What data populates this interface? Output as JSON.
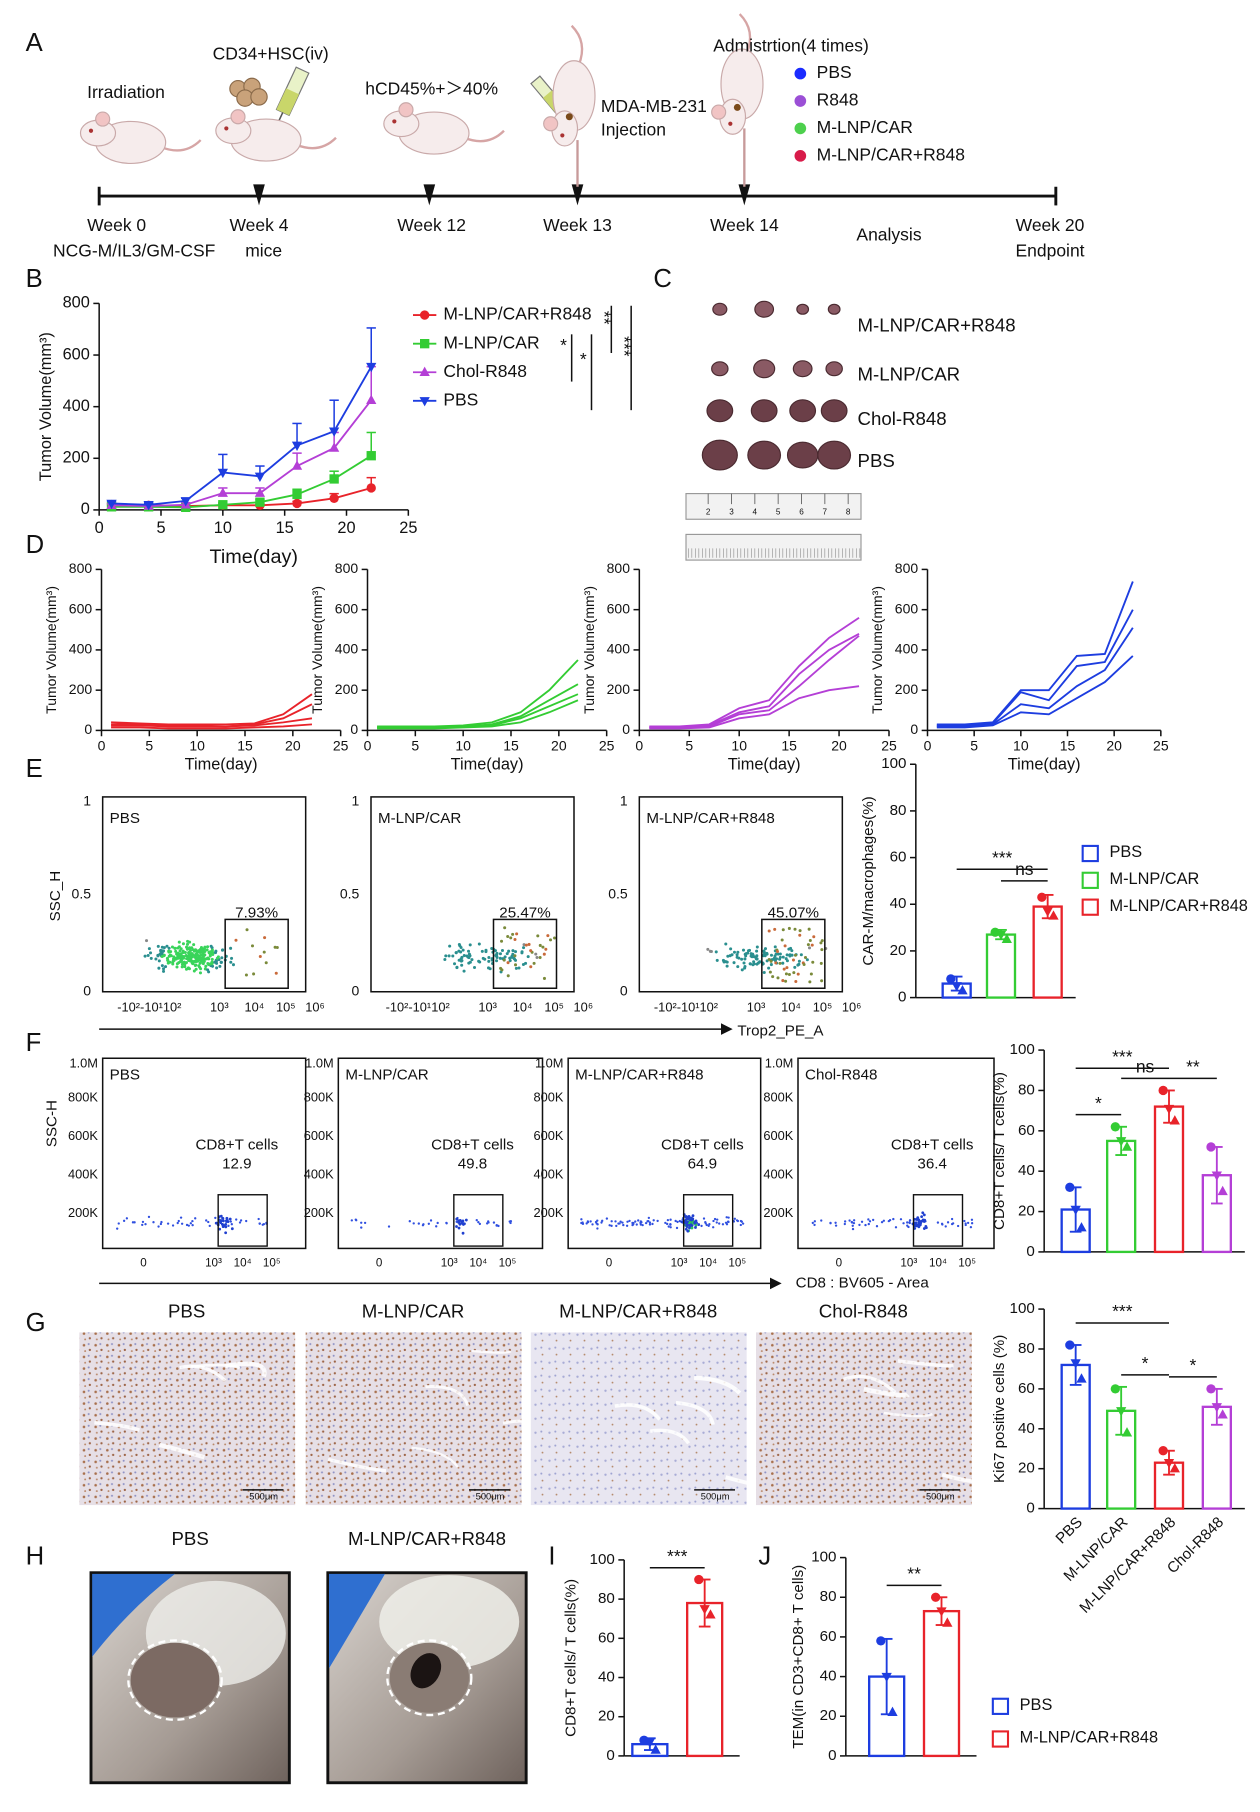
{
  "panel_labels": [
    "A",
    "B",
    "C",
    "D",
    "E",
    "F",
    "G",
    "H",
    "I",
    "J"
  ],
  "timeline": {
    "notes": [
      "Irradiation",
      "CD34+HSC(iv)",
      "hCD45%+＞40%",
      "MDA-MB-231",
      "Injection",
      "Admistrtion(4 times)"
    ],
    "weeks": [
      "Week 0",
      "Week 4",
      "Week 12",
      "Week 13",
      "Week 14",
      "Analysis",
      "Week 20"
    ],
    "sub_labels": [
      "NCG-M/IL3/GM-CSF",
      "mice",
      "Endpoint"
    ],
    "legend": [
      {
        "name": "PBS",
        "color": "#1a2bff"
      },
      {
        "name": "R848",
        "color": "#9b4fd6"
      },
      {
        "name": "M-LNP/CAR",
        "color": "#4dd04d"
      },
      {
        "name": "M-LNP/CAR+R848",
        "color": "#d81b4a"
      }
    ]
  },
  "tumor_photo": {
    "labels": [
      "M-LNP/CAR+R848",
      "M-LNP/CAR",
      "Chol-R848",
      "PBS"
    ],
    "ruler": [
      2,
      3,
      4,
      5,
      6,
      7,
      8
    ]
  },
  "flow_e": {
    "y_label": "SSC_H",
    "x_label": "Trop2_PE_A",
    "y_ticks": [
      "0",
      "0.5",
      "1"
    ],
    "x_ticks": [
      "-10²-10¹10²",
      "10³",
      "10⁴",
      "10⁵",
      "10⁶"
    ],
    "panels": [
      {
        "label": "PBS",
        "gate": "7.93%"
      },
      {
        "label": "M-LNP/CAR",
        "gate": "25.47%"
      },
      {
        "label": "M-LNP/CAR+R848",
        "gate": "45.07%"
      }
    ]
  },
  "flow_f": {
    "y_label": "SSC-H",
    "x_label": "CD8 : BV605 - Area",
    "y_ticks": [
      "200K",
      "400K",
      "600K",
      "800K",
      "1.0M"
    ],
    "x_ticks": [
      "0",
      "10³",
      "10⁴",
      "10⁵"
    ],
    "gate_title": "CD8+T cells",
    "panels": [
      {
        "label": "PBS",
        "gate": "12.9"
      },
      {
        "label": "M-LNP/CAR",
        "gate": "49.8"
      },
      {
        "label": "M-LNP/CAR+R848",
        "gate": "64.9"
      },
      {
        "label": "Chol-R848",
        "gate": "36.4"
      }
    ]
  },
  "histology": {
    "labels": [
      "PBS",
      "M-LNP/CAR",
      "M-LNP/CAR+R848",
      "Chol-R848"
    ],
    "scale_bar": "500μm"
  },
  "photos": {
    "labels": [
      "PBS",
      "M-LNP/CAR+R848"
    ]
  },
  "chart_data": [
    {
      "type": "line",
      "x_label": "Time(day)",
      "y_label": "Tumor Volume(mm³)",
      "x": [
        1,
        4,
        7,
        10,
        13,
        16,
        19,
        22
      ],
      "xlim": [
        0,
        25
      ],
      "xticks": [
        0,
        5,
        10,
        15,
        20,
        25
      ],
      "ylim": [
        0,
        800
      ],
      "yticks": [
        0,
        200,
        400,
        600,
        800
      ],
      "series": [
        {
          "name": "M-LNP/CAR+R848",
          "color": "#e8232a",
          "marker": "circle",
          "values": [
            20,
            18,
            15,
            18,
            18,
            25,
            45,
            85
          ],
          "errors": [
            6,
            5,
            4,
            5,
            5,
            8,
            18,
            40
          ]
        },
        {
          "name": "M-LNP/CAR",
          "color": "#33cc33",
          "marker": "square",
          "values": [
            12,
            12,
            10,
            20,
            30,
            60,
            120,
            210
          ],
          "errors": [
            4,
            4,
            4,
            8,
            10,
            20,
            30,
            90
          ]
        },
        {
          "name": "Chol-R848",
          "color": "#b43fd6",
          "marker": "triangle-up",
          "values": [
            18,
            15,
            20,
            65,
            65,
            170,
            240,
            425
          ],
          "errors": [
            5,
            5,
            8,
            20,
            20,
            50,
            60,
            130
          ]
        },
        {
          "name": "PBS",
          "color": "#1d3de0",
          "marker": "triangle-down",
          "values": [
            25,
            20,
            35,
            145,
            130,
            250,
            305,
            555
          ],
          "errors": [
            8,
            6,
            10,
            70,
            40,
            85,
            120,
            150
          ]
        }
      ],
      "significance": [
        {
          "label": "*",
          "between": [
            1,
            2
          ]
        },
        {
          "label": "*",
          "between": [
            1,
            3
          ]
        },
        {
          "label": "**",
          "between": [
            0,
            1
          ]
        },
        {
          "label": "***",
          "between": [
            0,
            3
          ]
        }
      ]
    },
    {
      "type": "line",
      "x_label": "Time(day)",
      "y_label": "Tumor Volume(mm³)",
      "x": [
        1,
        4,
        7,
        10,
        13,
        16,
        19,
        22
      ],
      "xlim": [
        0,
        25
      ],
      "xticks": [
        0,
        5,
        10,
        15,
        20,
        25
      ],
      "ylim": [
        0,
        800
      ],
      "yticks": [
        0,
        200,
        400,
        600,
        800
      ],
      "series": [
        {
          "color": "#e8232a",
          "values": [
            40,
            35,
            30,
            30,
            30,
            35,
            80,
            180
          ]
        },
        {
          "color": "#e8232a",
          "values": [
            30,
            30,
            25,
            25,
            20,
            30,
            60,
            130
          ]
        },
        {
          "color": "#e8232a",
          "values": [
            25,
            25,
            20,
            20,
            20,
            25,
            40,
            60
          ]
        },
        {
          "color": "#e8232a",
          "values": [
            15,
            15,
            10,
            10,
            10,
            15,
            20,
            30
          ]
        }
      ]
    },
    {
      "type": "line",
      "x_label": "Time(day)",
      "y_label": "Tumor Volume(mm³)",
      "x": [
        1,
        4,
        7,
        10,
        13,
        16,
        19,
        22
      ],
      "xlim": [
        0,
        25
      ],
      "xticks": [
        0,
        5,
        10,
        15,
        20,
        25
      ],
      "ylim": [
        0,
        800
      ],
      "yticks": [
        0,
        200,
        400,
        600,
        800
      ],
      "series": [
        {
          "color": "#33cc33",
          "values": [
            20,
            20,
            20,
            25,
            40,
            90,
            200,
            350
          ]
        },
        {
          "color": "#33cc33",
          "values": [
            15,
            15,
            15,
            20,
            30,
            70,
            150,
            230
          ]
        },
        {
          "color": "#33cc33",
          "values": [
            15,
            15,
            15,
            20,
            25,
            60,
            120,
            180
          ]
        },
        {
          "color": "#33cc33",
          "values": [
            10,
            10,
            10,
            15,
            20,
            40,
            90,
            150
          ]
        }
      ]
    },
    {
      "type": "line",
      "x_label": "Time(day)",
      "y_label": "Tumor Volume(mm³)",
      "x": [
        1,
        4,
        7,
        10,
        13,
        16,
        19,
        22
      ],
      "xlim": [
        0,
        25
      ],
      "xticks": [
        0,
        5,
        10,
        15,
        20,
        25
      ],
      "ylim": [
        0,
        800
      ],
      "yticks": [
        0,
        200,
        400,
        600,
        800
      ],
      "series": [
        {
          "color": "#b43fd6",
          "values": [
            20,
            20,
            30,
            110,
            150,
            320,
            460,
            560
          ]
        },
        {
          "color": "#b43fd6",
          "values": [
            15,
            15,
            25,
            90,
            120,
            280,
            400,
            480
          ]
        },
        {
          "color": "#b43fd6",
          "values": [
            15,
            15,
            20,
            80,
            100,
            220,
            350,
            470
          ]
        },
        {
          "color": "#b43fd6",
          "values": [
            10,
            10,
            15,
            60,
            80,
            160,
            200,
            220
          ]
        }
      ]
    },
    {
      "type": "line",
      "x_label": "Time(day)",
      "y_label": "Tumor Volume(mm³)",
      "x": [
        1,
        4,
        7,
        10,
        13,
        16,
        19,
        22
      ],
      "xlim": [
        0,
        25
      ],
      "xticks": [
        0,
        5,
        10,
        15,
        20,
        25
      ],
      "ylim": [
        0,
        800
      ],
      "yticks": [
        0,
        200,
        400,
        600,
        800
      ],
      "series": [
        {
          "color": "#1d3de0",
          "values": [
            30,
            30,
            40,
            200,
            200,
            370,
            380,
            740
          ]
        },
        {
          "color": "#1d3de0",
          "values": [
            25,
            25,
            35,
            190,
            150,
            320,
            340,
            600
          ]
        },
        {
          "color": "#1d3de0",
          "values": [
            20,
            20,
            30,
            130,
            110,
            220,
            300,
            510
          ]
        },
        {
          "color": "#1d3de0",
          "values": [
            15,
            15,
            25,
            90,
            80,
            160,
            240,
            370
          ]
        }
      ]
    },
    {
      "type": "bar",
      "y_label": "CAR-M/macrophages(%)",
      "legend": true,
      "categories": [
        "PBS",
        "M-LNP/CAR",
        "M-LNP/CAR+R848"
      ],
      "colors": [
        "#1d3de0",
        "#33cc33",
        "#e8232a"
      ],
      "values": [
        6,
        27,
        39
      ],
      "errors": [
        3,
        2,
        5
      ],
      "points": [
        [
          8,
          5,
          3
        ],
        [
          28,
          27,
          25
        ],
        [
          43,
          37,
          35
        ]
      ],
      "ylim": [
        0,
        100
      ],
      "yticks": [
        0,
        20,
        40,
        60,
        80,
        100
      ],
      "significance": [
        {
          "label": "***",
          "between": [
            0,
            2
          ]
        },
        {
          "label": "ns",
          "between": [
            1,
            2
          ]
        }
      ]
    },
    {
      "type": "bar",
      "y_label": "CD8+T cells/ T cells(%)",
      "colors": [
        "#1d3de0",
        "#33cc33",
        "#e8232a",
        "#b43fd6"
      ],
      "values": [
        21,
        55,
        72,
        38
      ],
      "errors": [
        11,
        7,
        8,
        14
      ],
      "points": [
        [
          32,
          21,
          12
        ],
        [
          62,
          55,
          52
        ],
        [
          80,
          71,
          65
        ],
        [
          52,
          38,
          30
        ]
      ],
      "ylim": [
        0,
        100
      ],
      "yticks": [
        0,
        20,
        40,
        60,
        80,
        100
      ],
      "significance": [
        {
          "label": "*",
          "between": [
            0,
            1
          ]
        },
        {
          "label": "***",
          "between": [
            0,
            2
          ]
        },
        {
          "label": "ns",
          "between": [
            1,
            2
          ]
        },
        {
          "label": "**",
          "between": [
            2,
            3
          ]
        }
      ]
    },
    {
      "type": "bar",
      "y_label": "Ki67 positive cells (%)",
      "legend": false,
      "categories": [
        "PBS",
        "M-LNP/CAR",
        "M-LNP/CAR+R848",
        "Chol-R848"
      ],
      "colors": [
        "#1d3de0",
        "#33cc33",
        "#e8232a",
        "#b43fd6"
      ],
      "values": [
        72,
        49,
        23,
        51
      ],
      "errors": [
        10,
        12,
        6,
        9
      ],
      "points": [
        [
          82,
          73,
          65
        ],
        [
          60,
          49,
          38
        ],
        [
          29,
          23,
          20
        ],
        [
          60,
          51,
          47
        ]
      ],
      "ylim": [
        0,
        100
      ],
      "yticks": [
        0,
        20,
        40,
        60,
        80,
        100
      ],
      "significance": [
        {
          "label": "***",
          "between": [
            0,
            2
          ]
        },
        {
          "label": "*",
          "between": [
            1,
            2
          ]
        },
        {
          "label": "*",
          "between": [
            2,
            3
          ]
        }
      ]
    },
    {
      "type": "bar",
      "y_label": "CD8+T cells/ T cells(%)",
      "colors": [
        "#1d3de0",
        "#e8232a"
      ],
      "values": [
        6,
        78
      ],
      "errors": [
        3,
        12
      ],
      "points": [
        [
          8,
          7,
          3
        ],
        [
          90,
          75,
          72
        ]
      ],
      "ylim": [
        0,
        100
      ],
      "yticks": [
        0,
        20,
        40,
        60,
        80,
        100
      ],
      "significance": [
        {
          "label": "***",
          "between": [
            0,
            1
          ]
        }
      ]
    },
    {
      "type": "bar",
      "y_label": "TEM(in CD3+CD8+ T cells)",
      "legend": true,
      "categories": [
        "PBS",
        "M-LNP/CAR+R848"
      ],
      "colors": [
        "#1d3de0",
        "#e8232a"
      ],
      "values": [
        40,
        73
      ],
      "errors": [
        19,
        7
      ],
      "points": [
        [
          58,
          40,
          22
        ],
        [
          80,
          73,
          67
        ]
      ],
      "ylim": [
        0,
        100
      ],
      "yticks": [
        0,
        20,
        40,
        60,
        80,
        100
      ],
      "significance": [
        {
          "label": "**",
          "between": [
            0,
            1
          ]
        }
      ]
    }
  ]
}
